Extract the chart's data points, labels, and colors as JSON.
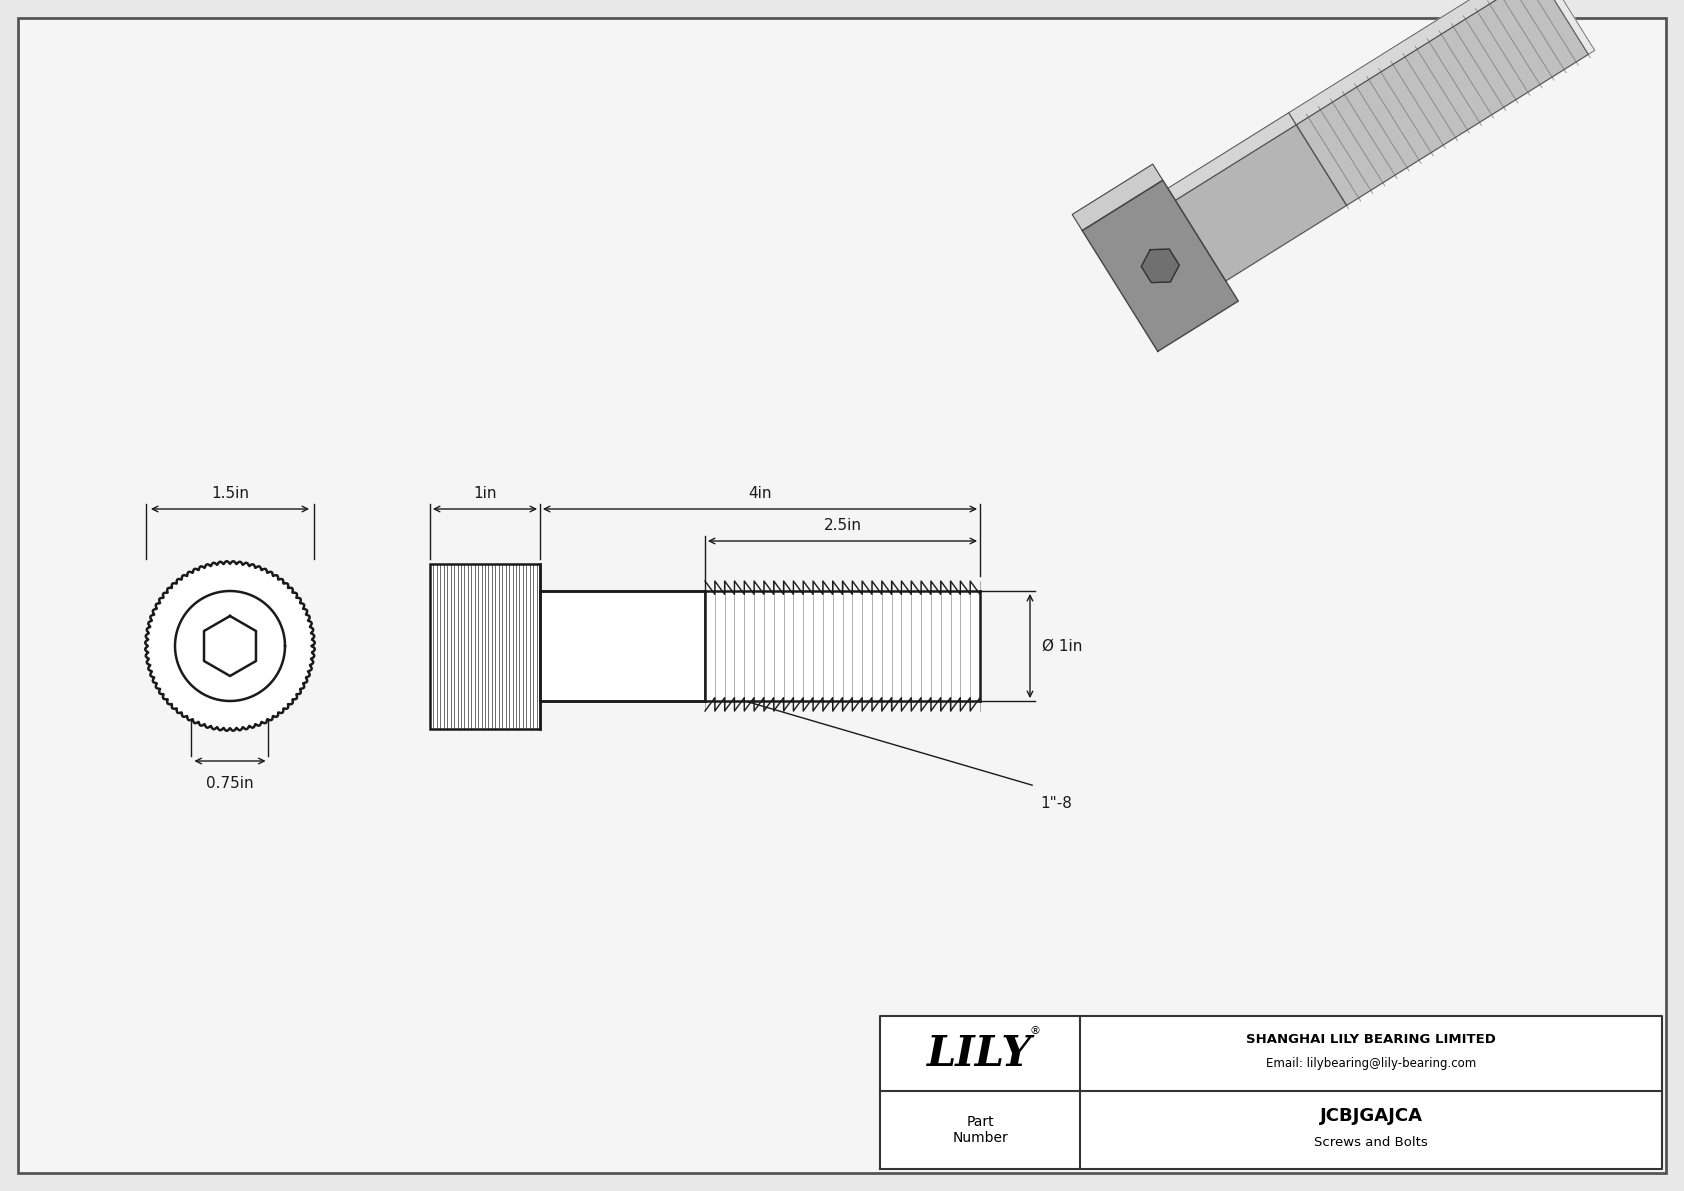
{
  "bg_color": "#e8e8e8",
  "drawing_bg": "#f5f5f5",
  "line_color": "#1a1a1a",
  "dim_color": "#1a1a1a",
  "title": "JCBJGAJCA",
  "subtitle": "Screws and Bolts",
  "company": "SHANGHAI LILY BEARING LIMITED",
  "email": "Email: lilybearing@lily-bearing.com",
  "part_label": "Part\nNumber",
  "logo_text": "LILY",
  "logo_reg": "®",
  "dim_head_width": "1.5in",
  "dim_head_inner": "0.75in",
  "dim_shank_length": "1in",
  "dim_total_length": "4in",
  "dim_thread_length": "2.5in",
  "dim_diameter": "Ø 1in",
  "dim_thread_spec": "1\"-8",
  "border_color": "#555555",
  "table_line_color": "#333333"
}
